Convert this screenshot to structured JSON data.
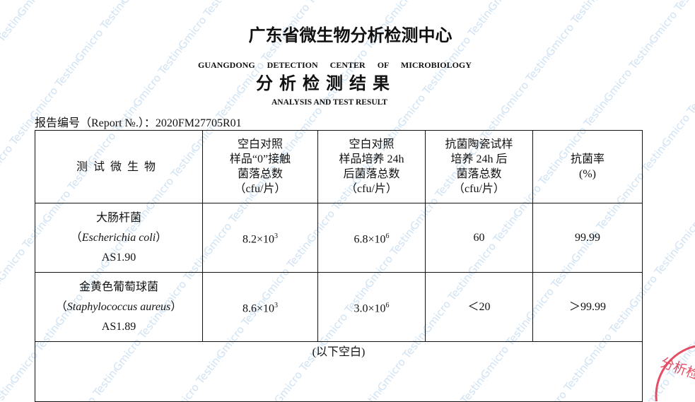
{
  "watermark": "Gmicro Testing",
  "header": {
    "title_cn": "广东省微生物分析检测中心",
    "title_en": "GUANGDONG DETECTION CENTER OF MICROBIOLOGY",
    "subtitle_cn": "分析检测结果",
    "subtitle_en": "ANALYSIS AND TEST RESULT",
    "report_no": "报告编号（Report №.）：2020FM27705R01"
  },
  "table": {
    "headers": [
      [
        "测试微生物"
      ],
      [
        "空白对照",
        "样品“0”接触",
        "菌落总数",
        "（cfu/片）"
      ],
      [
        "空白对照",
        "样品培养 24h",
        "后菌落总数",
        "（cfu/片）"
      ],
      [
        "抗菌陶瓷试样",
        "培养 24h 后",
        "菌落总数",
        "（cfu/片）"
      ],
      [
        "抗菌率",
        "(%)"
      ]
    ],
    "rows": [
      {
        "name_cn": "大肠杆菌",
        "name_latin": "Escherichia coli",
        "strain": "AS1.90",
        "blank0_mant": "8.2×10",
        "blank0_exp": "3",
        "blank24_mant": "6.8×10",
        "blank24_exp": "6",
        "sample24": "60",
        "rate": "99.99"
      },
      {
        "name_cn": "金黄色葡萄球菌",
        "name_latin": "Staphylococcus aureus",
        "strain": "AS1.89",
        "blank0_mant": "8.6×10",
        "blank0_exp": "3",
        "blank24_mant": "3.0×10",
        "blank24_exp": "6",
        "sample24": "＜20",
        "rate": "＞99.99"
      }
    ],
    "footer": "(以下空白)"
  },
  "stamp": {
    "text": "分析检",
    "color": "#e0304a"
  },
  "colors": {
    "watermark": "#cfe2f3",
    "stamp": "#e0304a"
  }
}
